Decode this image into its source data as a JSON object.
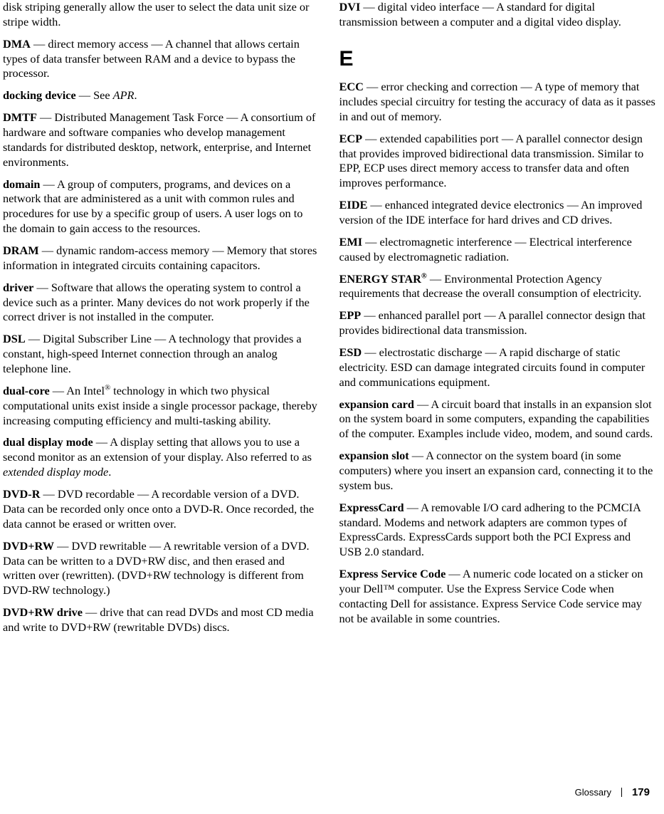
{
  "leftColumn": {
    "diskStriping": {
      "text": "disk striping generally allow the user to select the data unit size or stripe width."
    },
    "dma": {
      "term": "DMA",
      "text": " — direct memory access — A channel that allows certain types of data transfer between RAM and a device to bypass the processor."
    },
    "dockingDevice": {
      "term": "docking device",
      "text": " — See ",
      "italic": "APR",
      "after": "."
    },
    "dmtf": {
      "term": "DMTF",
      "text": " — Distributed Management Task Force — A consortium of hardware and software companies who develop management standards for distributed desktop, network, enterprise, and Internet environments."
    },
    "domain": {
      "term": "domain",
      "text": " — A group of computers, programs, and devices on a network that are administered as a unit with common rules and procedures for use by a specific group of users. A user logs on to the domain to gain access to the resources."
    },
    "dram": {
      "term": "DRAM",
      "text": " — dynamic random-access memory — Memory that stores information in integrated circuits containing capacitors."
    },
    "driver": {
      "term": "driver",
      "text": " — Software that allows the operating system to control a device such as a printer. Many devices do not work properly if the correct driver is not installed in the computer."
    },
    "dsl": {
      "term": "DSL",
      "text": " — Digital Subscriber Line — A technology that provides a constant, high-speed Internet connection through an analog telephone line."
    },
    "dualcore": {
      "term": "dual-core",
      "text1": " — An Intel",
      "sup": "®",
      "text2": " technology in which two physical computational units exist inside a single processor package, thereby increasing computing efficiency and multi-tasking ability."
    },
    "dualDisplay": {
      "term": "dual display mode",
      "text": " — A display setting that allows you to use a second monitor as an extension of your display. Also referred to as ",
      "italic": "extended display mode",
      "after": "."
    },
    "dvdr": {
      "term": "DVD-R",
      "text": " — DVD recordable — A recordable version of a DVD. Data can be recorded only once onto a DVD-R. Once recorded, the data cannot be erased or written over."
    },
    "dvdrw": {
      "term": "DVD+RW",
      "text": " — DVD rewritable — A rewritable version of a DVD. Data can be written to a DVD+RW disc, and then erased and written over (rewritten). (DVD+RW technology is different from DVD-RW technology.)"
    },
    "dvdrwDrive": {
      "term": "DVD+RW drive",
      "text": " — drive that can read DVDs and most CD media and write to DVD+RW (rewritable DVDs) discs."
    }
  },
  "rightColumn": {
    "dvi": {
      "term": "DVI",
      "text": " — digital video interface — A standard for digital transmission between a computer and a digital video display."
    },
    "sectionLetter": "E",
    "ecc": {
      "term": "ECC",
      "text": " — error checking and correction — A type of memory that includes special circuitry for testing the accuracy of data as it passes in and out of memory."
    },
    "ecp": {
      "term": "ECP",
      "text": " — extended capabilities port — A parallel connector design that provides improved bidirectional data transmission. Similar to EPP, ECP uses direct memory access to transfer data and often improves performance."
    },
    "eide": {
      "term": "EIDE",
      "text": " — enhanced integrated device electronics — An improved version of the IDE interface for hard drives and CD drives."
    },
    "emi": {
      "term": "EMI",
      "text": " — electromagnetic interference — Electrical interference caused by electromagnetic radiation."
    },
    "energystar": {
      "term": "ENERGY STAR",
      "sup": "®",
      "text": " — Environmental Protection Agency requirements that decrease the overall consumption of electricity."
    },
    "epp": {
      "term": "EPP",
      "text": " — enhanced parallel port — A parallel connector design that provides bidirectional data transmission."
    },
    "esd": {
      "term": "ESD",
      "text": " — electrostatic discharge — A rapid discharge of static electricity. ESD can damage integrated circuits found in computer and communications equipment."
    },
    "expansionCard": {
      "term": "expansion card",
      "text": " — A circuit board that installs in an expansion slot on the system board in some computers, expanding the capabilities of the computer. Examples include video, modem, and sound cards."
    },
    "expansionSlot": {
      "term": "expansion slot",
      "text": " — A connector on the system board (in some computers) where you insert an expansion card, connecting it to the system bus."
    },
    "expressCard": {
      "term": "ExpressCard",
      "text": " — A removable I/O card adhering to the PCMCIA standard. Modems and network adapters are common types of ExpressCards. ExpressCards support both the PCI Express and USB 2.0 standard."
    },
    "expressService": {
      "term": "Express Service Code",
      "text": " — A numeric code located on a sticker on your Dell™ computer. Use the Express Service Code when contacting Dell for assistance. Express Service Code service may not be available in some countries."
    }
  },
  "footer": {
    "label": "Glossary",
    "page": "179"
  }
}
